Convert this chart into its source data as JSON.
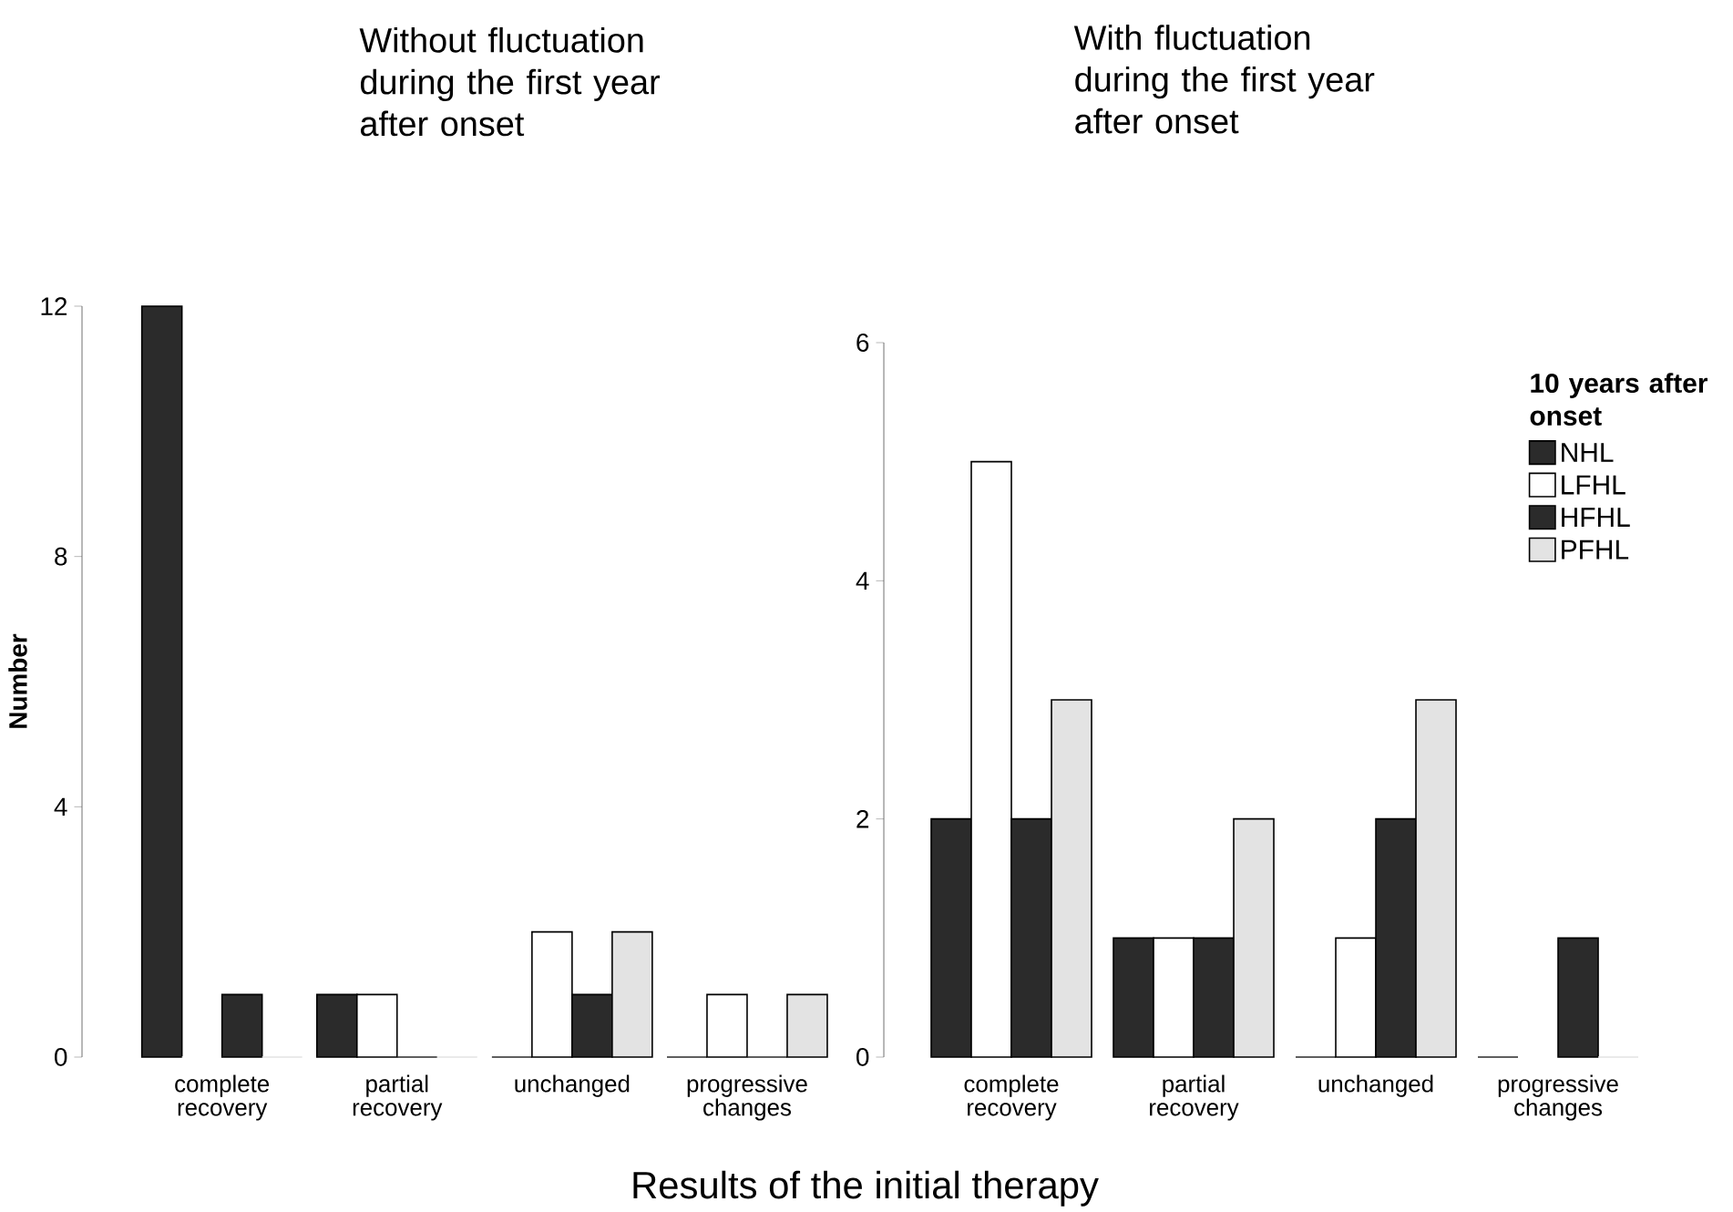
{
  "chart_data": [
    {
      "type": "bar",
      "title": "Without fluctuation during the first year after onset",
      "ylabel": "Number",
      "xlabel": "Results of the initial therapy",
      "categories": [
        "complete recovery",
        "partial recovery",
        "unchanged",
        "progressive changes"
      ],
      "ylim": [
        0,
        12
      ],
      "yticks": [
        0,
        4,
        8,
        12
      ],
      "series": [
        {
          "color": "#2b2b2b",
          "values": [
            12,
            1,
            0,
            0
          ]
        },
        {
          "color": "#ffffff",
          "values": [
            0,
            1,
            2,
            1
          ]
        },
        {
          "color": "#2b2b2b",
          "values": [
            1,
            0,
            1,
            0
          ]
        },
        {
          "color": "#e3e3e3",
          "values": [
            0,
            0,
            2,
            1
          ]
        }
      ]
    },
    {
      "type": "bar",
      "title": "With fluctuation during the first year after onset",
      "categories": [
        "complete recovery",
        "partial recovery",
        "unchanged",
        "progressive changes"
      ],
      "ylim": [
        0,
        6
      ],
      "yticks": [
        0,
        2,
        4,
        6
      ],
      "legend": "top right",
      "legend_title": "10 years after onset",
      "series": [
        {
          "name": "NHL",
          "color": "#2b2b2b",
          "values": [
            2,
            1,
            0,
            0
          ]
        },
        {
          "name": "LFHL",
          "color": "#ffffff",
          "values": [
            5,
            1,
            1,
            0
          ]
        },
        {
          "name": "HFHL",
          "color": "#2b2b2b",
          "values": [
            2,
            1,
            2,
            1
          ]
        },
        {
          "name": "PFHL",
          "color": "#e3e3e3",
          "values": [
            3,
            2,
            3,
            0
          ]
        }
      ]
    }
  ]
}
